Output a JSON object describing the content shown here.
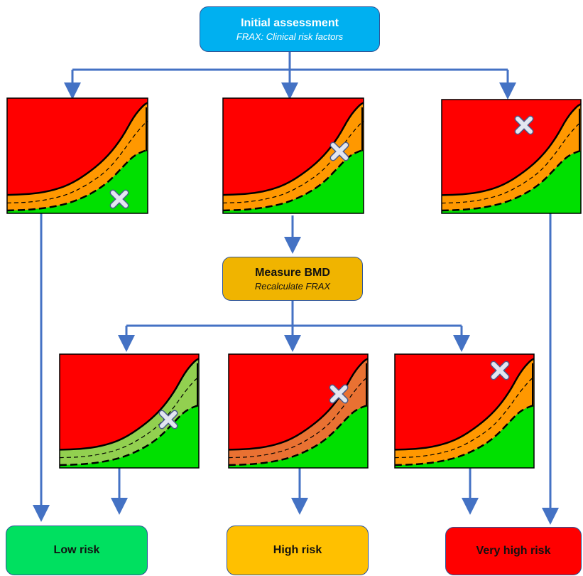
{
  "initial": {
    "title": "Initial assessment",
    "subtitle": "FRAX: Clinical risk factors"
  },
  "bmd": {
    "title": "Measure BMD",
    "subtitle": "Recalculate FRAX"
  },
  "outcomes": {
    "low": "Low risk",
    "high": "High risk",
    "very_high": "Very high risk"
  },
  "colors": {
    "red": "#ff0000",
    "orange": "#ff9800",
    "green": "#00e000",
    "light_green": "#92d050",
    "dark_orange": "#e97132",
    "arrow": "#4472c4",
    "marker": "#e3e6f0"
  },
  "charts": [
    {
      "band_color": "orange"
    },
    {
      "band_color": "orange"
    },
    {
      "band_color": "orange"
    },
    {
      "band_color": "light_green"
    },
    {
      "band_color": "dark_orange"
    },
    {
      "band_color": "orange"
    }
  ]
}
